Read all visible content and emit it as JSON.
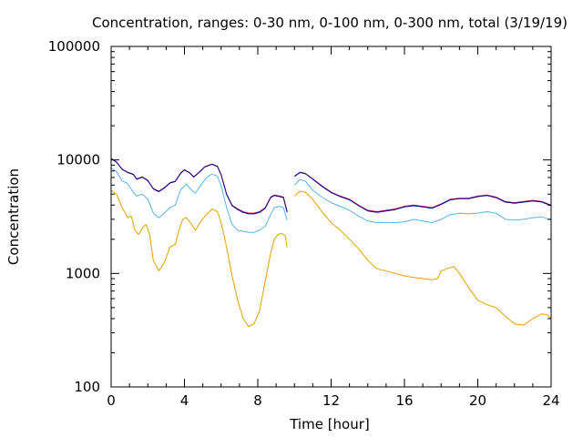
{
  "chart_data": {
    "type": "line",
    "title": "Concentration, ranges: 0-30 nm, 0-100 nm, 0-300 nm, total (3/19/19)",
    "xlabel": "Time [hour]",
    "ylabel": "Concentration",
    "xlim": [
      0,
      24
    ],
    "ylim": [
      100,
      100000
    ],
    "yscale": "log",
    "legend": "none",
    "grid": false,
    "xticks": [
      "0",
      "4",
      "8",
      "12",
      "16",
      "20",
      "24"
    ],
    "yticks": [
      "100",
      "1000",
      "10000",
      "100000"
    ],
    "series": [
      {
        "color": "#e69f00",
        "segments": [
          [
            [
              0,
              5400
            ],
            [
              0.3,
              5000
            ],
            [
              0.6,
              3800
            ],
            [
              0.9,
              3100
            ],
            [
              1.1,
              3200
            ],
            [
              1.3,
              2400
            ],
            [
              1.5,
              2200
            ],
            [
              1.7,
              2500
            ],
            [
              1.9,
              2700
            ],
            [
              2.1,
              2200
            ],
            [
              2.3,
              1300
            ],
            [
              2.6,
              1050
            ],
            [
              2.9,
              1250
            ],
            [
              3.2,
              1700
            ],
            [
              3.5,
              1800
            ],
            [
              3.7,
              2400
            ],
            [
              3.9,
              3000
            ],
            [
              4.1,
              3100
            ],
            [
              4.4,
              2700
            ],
            [
              4.6,
              2400
            ],
            [
              4.9,
              2900
            ],
            [
              5.2,
              3300
            ],
            [
              5.5,
              3700
            ],
            [
              5.8,
              3500
            ],
            [
              6.0,
              2800
            ],
            [
              6.3,
              1700
            ],
            [
              6.6,
              950
            ],
            [
              6.9,
              580
            ],
            [
              7.2,
              400
            ],
            [
              7.5,
              340
            ],
            [
              7.8,
              360
            ],
            [
              8.1,
              470
            ],
            [
              8.4,
              850
            ],
            [
              8.7,
              1500
            ],
            [
              8.9,
              2000
            ],
            [
              9.1,
              2200
            ],
            [
              9.3,
              2250
            ],
            [
              9.5,
              2150
            ],
            [
              9.6,
              1700
            ]
          ],
          [
            [
              10.0,
              4800
            ],
            [
              10.3,
              5300
            ],
            [
              10.6,
              5200
            ],
            [
              11.0,
              4500
            ],
            [
              11.5,
              3500
            ],
            [
              12.0,
              2800
            ],
            [
              12.5,
              2400
            ],
            [
              13.0,
              2000
            ],
            [
              13.5,
              1650
            ],
            [
              14.0,
              1300
            ],
            [
              14.5,
              1100
            ],
            [
              15.0,
              1050
            ],
            [
              15.5,
              1000
            ],
            [
              16.0,
              950
            ],
            [
              16.5,
              920
            ],
            [
              17.0,
              900
            ],
            [
              17.5,
              880
            ],
            [
              17.8,
              900
            ],
            [
              18.0,
              1050
            ],
            [
              18.3,
              1100
            ],
            [
              18.7,
              1150
            ],
            [
              19.0,
              1000
            ],
            [
              19.5,
              750
            ],
            [
              20.0,
              580
            ],
            [
              20.5,
              530
            ],
            [
              21.0,
              500
            ],
            [
              21.5,
              420
            ],
            [
              22.0,
              360
            ],
            [
              22.5,
              350
            ],
            [
              23.0,
              400
            ],
            [
              23.5,
              440
            ],
            [
              23.8,
              430
            ],
            [
              24.0,
              400
            ]
          ]
        ]
      },
      {
        "color": "#56b4e9",
        "segments": [
          [
            [
              0,
              8500
            ],
            [
              0.3,
              7900
            ],
            [
              0.6,
              6500
            ],
            [
              0.9,
              6200
            ],
            [
              1.2,
              5200
            ],
            [
              1.4,
              4800
            ],
            [
              1.7,
              5000
            ],
            [
              2.0,
              4500
            ],
            [
              2.3,
              3400
            ],
            [
              2.6,
              3100
            ],
            [
              2.9,
              3400
            ],
            [
              3.2,
              3800
            ],
            [
              3.5,
              4000
            ],
            [
              3.8,
              5500
            ],
            [
              4.1,
              6100
            ],
            [
              4.4,
              5400
            ],
            [
              4.6,
              5100
            ],
            [
              4.9,
              6000
            ],
            [
              5.2,
              7000
            ],
            [
              5.5,
              7500
            ],
            [
              5.8,
              7200
            ],
            [
              6.0,
              5900
            ],
            [
              6.3,
              3800
            ],
            [
              6.6,
              2700
            ],
            [
              6.9,
              2400
            ],
            [
              7.2,
              2350
            ],
            [
              7.5,
              2300
            ],
            [
              7.8,
              2300
            ],
            [
              8.1,
              2400
            ],
            [
              8.4,
              2600
            ],
            [
              8.7,
              3300
            ],
            [
              8.9,
              3800
            ],
            [
              9.2,
              3900
            ],
            [
              9.4,
              3800
            ],
            [
              9.6,
              2950
            ]
          ],
          [
            [
              10.0,
              6000
            ],
            [
              10.3,
              6700
            ],
            [
              10.6,
              6500
            ],
            [
              11.0,
              5400
            ],
            [
              11.5,
              4700
            ],
            [
              12.0,
              4200
            ],
            [
              12.5,
              3900
            ],
            [
              13.0,
              3600
            ],
            [
              13.5,
              3200
            ],
            [
              14.0,
              2900
            ],
            [
              14.5,
              2800
            ],
            [
              15.0,
              2800
            ],
            [
              15.5,
              2800
            ],
            [
              16.0,
              2850
            ],
            [
              16.5,
              3000
            ],
            [
              17.0,
              2900
            ],
            [
              17.5,
              2800
            ],
            [
              18.0,
              3000
            ],
            [
              18.5,
              3300
            ],
            [
              19.0,
              3400
            ],
            [
              19.5,
              3350
            ],
            [
              20.0,
              3400
            ],
            [
              20.5,
              3500
            ],
            [
              21.0,
              3400
            ],
            [
              21.5,
              3000
            ],
            [
              22.0,
              2950
            ],
            [
              22.5,
              3000
            ],
            [
              23.0,
              3100
            ],
            [
              23.5,
              3150
            ],
            [
              24.0,
              2950
            ]
          ]
        ]
      },
      {
        "color": "#cc0055",
        "segments": [
          [
            [
              0,
              10300
            ],
            [
              0.3,
              9600
            ],
            [
              0.6,
              8300
            ],
            [
              0.9,
              7800
            ],
            [
              1.2,
              7500
            ],
            [
              1.4,
              6800
            ],
            [
              1.7,
              7100
            ],
            [
              2.0,
              6600
            ],
            [
              2.3,
              5600
            ],
            [
              2.6,
              5300
            ],
            [
              2.9,
              5700
            ],
            [
              3.2,
              6300
            ],
            [
              3.5,
              6500
            ],
            [
              3.8,
              7700
            ],
            [
              4.0,
              8200
            ],
            [
              4.3,
              7700
            ],
            [
              4.5,
              7100
            ],
            [
              4.8,
              7800
            ],
            [
              5.1,
              8700
            ],
            [
              5.5,
              9200
            ],
            [
              5.8,
              8800
            ],
            [
              6.0,
              7400
            ],
            [
              6.3,
              5000
            ],
            [
              6.6,
              4000
            ],
            [
              6.9,
              3700
            ],
            [
              7.2,
              3500
            ],
            [
              7.5,
              3400
            ],
            [
              7.8,
              3400
            ],
            [
              8.1,
              3500
            ],
            [
              8.4,
              3800
            ],
            [
              8.7,
              4700
            ],
            [
              8.9,
              4900
            ],
            [
              9.2,
              4800
            ],
            [
              9.4,
              4700
            ],
            [
              9.6,
              3500
            ]
          ],
          [
            [
              10.0,
              7200
            ],
            [
              10.3,
              7800
            ],
            [
              10.6,
              7600
            ],
            [
              11.0,
              6800
            ],
            [
              11.5,
              5900
            ],
            [
              12.0,
              5200
            ],
            [
              12.5,
              4800
            ],
            [
              13.0,
              4500
            ],
            [
              13.5,
              4000
            ],
            [
              14.0,
              3600
            ],
            [
              14.5,
              3500
            ],
            [
              15.0,
              3600
            ],
            [
              15.5,
              3700
            ],
            [
              16.0,
              3900
            ],
            [
              16.5,
              4000
            ],
            [
              17.0,
              3900
            ],
            [
              17.5,
              3800
            ],
            [
              18.0,
              4100
            ],
            [
              18.5,
              4500
            ],
            [
              19.0,
              4600
            ],
            [
              19.5,
              4600
            ],
            [
              20.0,
              4800
            ],
            [
              20.5,
              4900
            ],
            [
              21.0,
              4700
            ],
            [
              21.5,
              4300
            ],
            [
              22.0,
              4200
            ],
            [
              22.5,
              4300
            ],
            [
              23.0,
              4400
            ],
            [
              23.5,
              4300
            ],
            [
              24.0,
              4000
            ]
          ]
        ]
      },
      {
        "color": "#0b0b8c",
        "segments": [
          [
            [
              0,
              10250
            ],
            [
              0.3,
              9550
            ],
            [
              0.6,
              8250
            ],
            [
              0.9,
              7750
            ],
            [
              1.2,
              7450
            ],
            [
              1.4,
              6750
            ],
            [
              1.7,
              7050
            ],
            [
              2.0,
              6550
            ],
            [
              2.3,
              5550
            ],
            [
              2.6,
              5250
            ],
            [
              2.9,
              5650
            ],
            [
              3.2,
              6250
            ],
            [
              3.5,
              6450
            ],
            [
              3.8,
              7650
            ],
            [
              4.0,
              8150
            ],
            [
              4.3,
              7650
            ],
            [
              4.5,
              7050
            ],
            [
              4.8,
              7750
            ],
            [
              5.1,
              8650
            ],
            [
              5.5,
              9150
            ],
            [
              5.8,
              8750
            ],
            [
              6.0,
              7350
            ],
            [
              6.3,
              4950
            ],
            [
              6.6,
              3950
            ],
            [
              6.9,
              3650
            ],
            [
              7.2,
              3450
            ],
            [
              7.5,
              3350
            ],
            [
              7.8,
              3350
            ],
            [
              8.1,
              3450
            ],
            [
              8.4,
              3750
            ],
            [
              8.7,
              4650
            ],
            [
              8.9,
              4850
            ],
            [
              9.2,
              4750
            ],
            [
              9.4,
              4650
            ],
            [
              9.6,
              3450
            ]
          ],
          [
            [
              10.0,
              7150
            ],
            [
              10.3,
              7750
            ],
            [
              10.6,
              7550
            ],
            [
              11.0,
              6750
            ],
            [
              11.5,
              5850
            ],
            [
              12.0,
              5150
            ],
            [
              12.5,
              4750
            ],
            [
              13.0,
              4450
            ],
            [
              13.5,
              3950
            ],
            [
              14.0,
              3550
            ],
            [
              14.5,
              3450
            ],
            [
              15.0,
              3550
            ],
            [
              15.5,
              3650
            ],
            [
              16.0,
              3850
            ],
            [
              16.5,
              3950
            ],
            [
              17.0,
              3850
            ],
            [
              17.5,
              3750
            ],
            [
              18.0,
              4050
            ],
            [
              18.5,
              4450
            ],
            [
              19.0,
              4550
            ],
            [
              19.5,
              4550
            ],
            [
              20.0,
              4750
            ],
            [
              20.5,
              4850
            ],
            [
              21.0,
              4650
            ],
            [
              21.5,
              4250
            ],
            [
              22.0,
              4150
            ],
            [
              22.5,
              4250
            ],
            [
              23.0,
              4350
            ],
            [
              23.5,
              4250
            ],
            [
              24.0,
              3950
            ]
          ]
        ]
      }
    ]
  }
}
